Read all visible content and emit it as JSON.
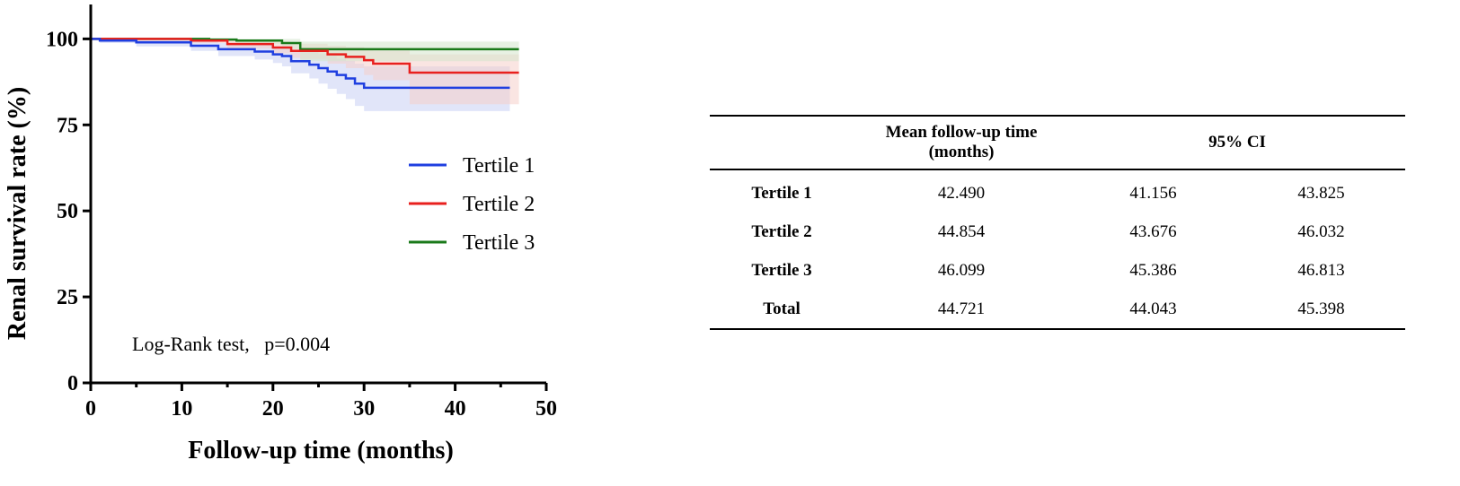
{
  "chart_data": {
    "type": "line",
    "subtype": "kaplan-meier",
    "xlabel": "Follow-up time (months)",
    "ylabel": "Renal survival rate (%)",
    "xlim": [
      0,
      50
    ],
    "ylim": [
      0,
      110
    ],
    "xticks": [
      0,
      10,
      20,
      30,
      40,
      50
    ],
    "yticks": [
      0,
      25,
      50,
      75,
      100
    ],
    "grid": false,
    "legend_position": "center-right",
    "annotation": "Log-Rank test,   p=0.004",
    "series": [
      {
        "name": "Tertile 1",
        "color": "#1f3fe0",
        "band_color": "#c8d0f4",
        "x": [
          0,
          1,
          5,
          11,
          14,
          18,
          20,
          21,
          22,
          24,
          25,
          26,
          27,
          28,
          29,
          30,
          46
        ],
        "y": [
          100,
          99.5,
          99,
          98,
          97,
          96.3,
          95.5,
          95,
          93.5,
          92.5,
          91.5,
          90.5,
          89.5,
          88.5,
          87,
          85.8,
          85.8
        ],
        "lower": [
          100,
          98.8,
          97.8,
          96.5,
          95,
          94,
          93,
          92,
          90,
          88.5,
          87,
          85.5,
          84,
          82.5,
          80.5,
          79,
          79
        ],
        "upper": [
          100,
          100,
          100,
          99.3,
          98.8,
          98.3,
          97.8,
          97.5,
          96.8,
          96.2,
          95.6,
          95,
          94.3,
          93.6,
          92.8,
          92,
          92
        ]
      },
      {
        "name": "Tertile 2",
        "color": "#e8201e",
        "band_color": "#f6d0cb",
        "x": [
          0,
          11,
          15,
          20,
          22,
          23,
          26,
          28,
          30,
          31,
          35,
          47
        ],
        "y": [
          100,
          99.5,
          98.5,
          97.5,
          96.5,
          96.5,
          95.5,
          94.8,
          93.8,
          92.8,
          90.2,
          90.2
        ],
        "lower": [
          100,
          98.8,
          97.2,
          95.8,
          94.5,
          94.2,
          92.8,
          91.5,
          89.5,
          88,
          81,
          81
        ],
        "upper": [
          100,
          100,
          99.8,
          99.2,
          98.6,
          98.6,
          98,
          97.6,
          97.2,
          96.6,
          95.5,
          95.5
        ]
      },
      {
        "name": "Tertile 3",
        "color": "#1a7a1a",
        "band_color": "#d3e6cc",
        "x": [
          0,
          13,
          16,
          21,
          23,
          47
        ],
        "y": [
          100,
          99.8,
          99.5,
          98.8,
          97,
          97
        ],
        "lower": [
          100,
          99.3,
          98.5,
          97,
          93.5,
          93.5
        ],
        "upper": [
          100,
          100,
          100,
          100,
          99.2,
          99.2
        ]
      }
    ],
    "table": {
      "columns": [
        "",
        "Mean follow-up time (months)",
        "95% CI",
        ""
      ],
      "rows": [
        {
          "label": "Tertile 1",
          "mean": "42.490",
          "ci_low": "41.156",
          "ci_high": "43.825"
        },
        {
          "label": "Tertile 2",
          "mean": "44.854",
          "ci_low": "43.676",
          "ci_high": "46.032"
        },
        {
          "label": "Tertile 3",
          "mean": "46.099",
          "ci_low": "45.386",
          "ci_high": "46.813"
        },
        {
          "label": "Total",
          "mean": "44.721",
          "ci_low": "44.043",
          "ci_high": "45.398"
        }
      ]
    }
  },
  "table_headers": {
    "mean_line1": "Mean follow-up time",
    "mean_line2": "(months)",
    "ci": "95% CI"
  }
}
